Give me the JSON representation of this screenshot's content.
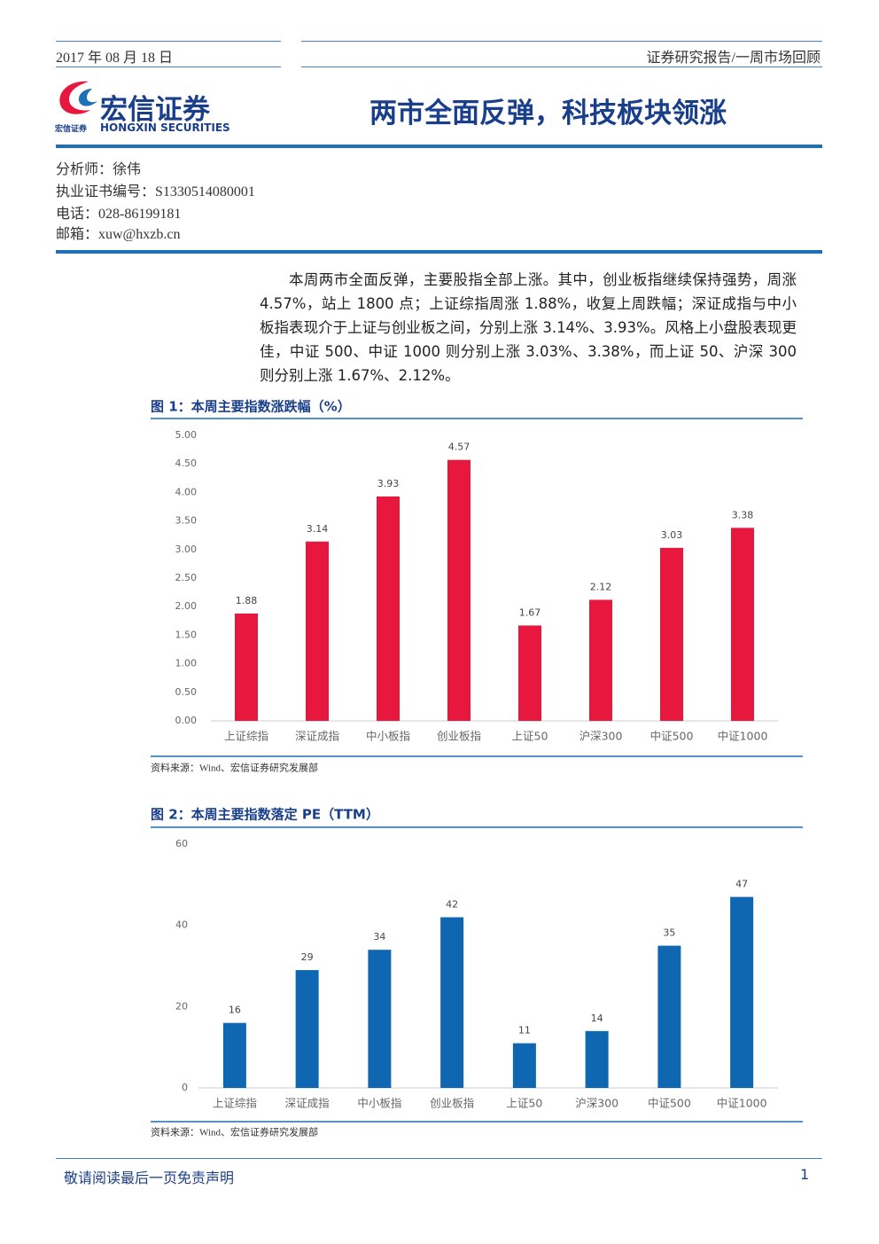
{
  "header": {
    "date": "2017 年 08 月 18 日",
    "report_type": "证券研究报告/一周市场回顾",
    "logo": {
      "name": "宏信证券",
      "english": "HONGXIN SECURITIES",
      "small": "宏信证券"
    },
    "title": "两市全面反弹，科技板块领涨"
  },
  "analyst": [
    "分析师：徐伟",
    "执业证书编号：S1330514080001",
    "电话：028-86199181",
    "邮箱：xuw@hxzb.cn"
  ],
  "body": "本周两市全面反弹，主要股指全部上涨。其中，创业板指继续保持强势，周涨 4.57%，站上 1800 点；上证综指周涨 1.88%，收复上周跌幅；深证成指与中小板指表现介于上证与创业板之间，分别上涨 3.14%、3.93%。风格上小盘股表现更佳，中证 500、中证 1000 则分别上涨 3.03%、3.38%，而上证 50、沪深 300 则分别上涨 1.67%、2.12%。",
  "chart_data": [
    {
      "type": "bar",
      "title": "图 1：本周主要指数涨跌幅（%）",
      "source": "资料来源：Wind、宏信证券研究发展部",
      "categories": [
        "上证综指",
        "深证成指",
        "中小板指",
        "创业板指",
        "上证50",
        "沪深300",
        "中证500",
        "中证1000"
      ],
      "values": [
        1.88,
        3.14,
        3.93,
        4.57,
        1.67,
        2.12,
        3.03,
        3.38
      ],
      "color": "#e8173d",
      "ylim": [
        0,
        5
      ],
      "yticks": [
        {
          "value": 0,
          "label": "0.00"
        },
        {
          "value": 0.5,
          "label": "0.50"
        },
        {
          "value": 1,
          "label": "1.00"
        },
        {
          "value": 1.5,
          "label": "1.50"
        },
        {
          "value": 2,
          "label": "2.00"
        },
        {
          "value": 2.5,
          "label": "2.50"
        },
        {
          "value": 3,
          "label": "3.00"
        },
        {
          "value": 3.5,
          "label": "3.50"
        },
        {
          "value": 4,
          "label": "4.00"
        },
        {
          "value": 4.5,
          "label": "4.50"
        },
        {
          "value": 5,
          "label": "5.00"
        }
      ],
      "grid": false
    },
    {
      "type": "bar",
      "title": "图 2：本周主要指数落定 PE（TTM）",
      "source": "资料来源：Wind、宏信证券研究发展部",
      "categories": [
        "上证综指",
        "深证成指",
        "中小板指",
        "创业板指",
        "上证50",
        "沪深300",
        "中证500",
        "中证1000"
      ],
      "values": [
        16,
        29,
        34,
        42,
        11,
        14,
        35,
        47
      ],
      "color": "#0e67b0",
      "ylim": [
        0,
        60
      ],
      "yticks": [
        0,
        20,
        40,
        60
      ],
      "grid": false
    }
  ],
  "footer": {
    "disclaimer": "敬请阅读最后一页免责声明",
    "page": 1
  }
}
